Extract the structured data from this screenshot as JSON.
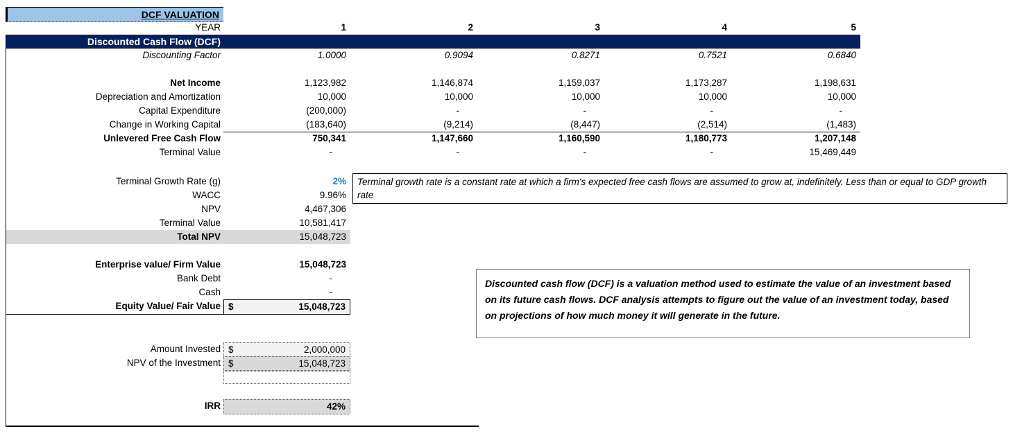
{
  "colors": {
    "header_bg": "#9DC3E6",
    "band_bg": "#04215F",
    "accent_blue": "#2E75B6",
    "gray_fill": "#D9D9D9",
    "light_fill": "#F2F2F2"
  },
  "title": "DCF VALUATION",
  "year": {
    "label": "YEAR",
    "values": [
      "1",
      "2",
      "3",
      "4",
      "5"
    ]
  },
  "band_header": "Discounted Cash Flow (DCF)",
  "discounting_factor": {
    "label": "Discounting Factor",
    "values": [
      "1.0000",
      "0.9094",
      "0.8271",
      "0.7521",
      "0.6840"
    ]
  },
  "cash_flow": {
    "net_income": {
      "label": "Net Income",
      "values": [
        "1,123,982",
        "1,146,874",
        "1,159,037",
        "1,173,287",
        "1,198,631"
      ]
    },
    "depreciation": {
      "label": "Depreciation and Amortization",
      "values": [
        "10,000",
        "10,000",
        "10,000",
        "10,000",
        "10,000"
      ]
    },
    "capex": {
      "label": "Capital Expenditure",
      "values": [
        "(200,000)",
        "-",
        "-",
        "-",
        "-"
      ]
    },
    "working_capital": {
      "label": "Change in Working Capital",
      "values": [
        "(183,640)",
        "(9,214)",
        "(8,447)",
        "(2,514)",
        "(1,483)"
      ]
    },
    "ufcf": {
      "label": "Unlevered Free Cash Flow",
      "values": [
        "750,341",
        "1,147,660",
        "1,160,590",
        "1,180,773",
        "1,207,148"
      ]
    },
    "terminal_value": {
      "label": "Terminal Value",
      "values": [
        "-",
        "-",
        "-",
        "-",
        "15,469,449"
      ]
    }
  },
  "summary": {
    "terminal_growth": {
      "label": "Terminal Growth Rate (g)",
      "value": "2%"
    },
    "wacc": {
      "label": "WACC",
      "value": "9.96%"
    },
    "npv": {
      "label": "NPV",
      "value": "4,467,306"
    },
    "terminal_value": {
      "label": "Terminal Value",
      "value": "10,581,417"
    },
    "total_npv": {
      "label": "Total NPV",
      "value": "15,048,723"
    }
  },
  "valuation": {
    "enterprise_value": {
      "label": "Enterprise value/ Firm Value",
      "value": "15,048,723"
    },
    "bank_debt": {
      "label": "Bank Debt",
      "value": "-"
    },
    "cash": {
      "label": "Cash",
      "value": "-"
    },
    "equity_value": {
      "label": "Equity Value/ Fair Value",
      "currency": "$",
      "value": "15,048,723"
    }
  },
  "investment": {
    "amount_invested": {
      "label": "Amount Invested",
      "currency": "$",
      "value": "2,000,000"
    },
    "npv_investment": {
      "label": "NPV of the Investment",
      "currency": "$",
      "value": "15,048,723"
    }
  },
  "irr": {
    "label": "IRR",
    "value": "42%"
  },
  "notes": {
    "terminal_growth_note": "Terminal growth rate is a constant rate at which a firm's expected free cash flows are assumed to grow at, indefinitely. Less than or equal to GDP growth rate",
    "dcf_note": "Discounted cash flow (DCF) is a valuation method used to estimate the value of an investment based on its future cash flows. DCF analysis attempts to figure out the value of an investment today, based on projections of how much money it will generate in the future."
  }
}
